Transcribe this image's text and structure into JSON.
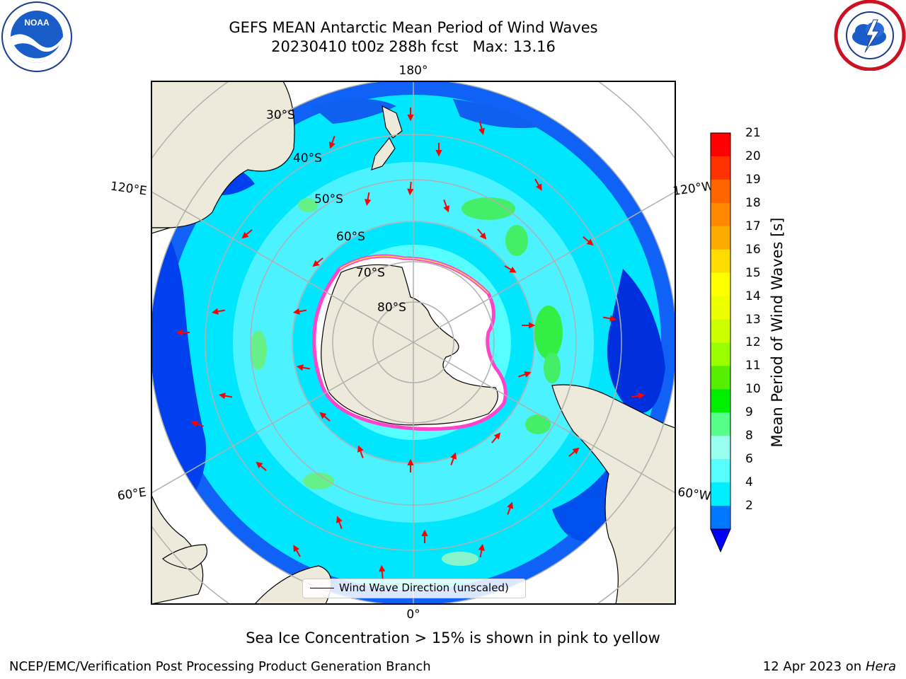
{
  "title": {
    "line1": "GEFS MEAN Antarctic Mean Period of Wind Waves",
    "line2": "20230410 t00z 288h fcst   Max: 13.16"
  },
  "map": {
    "projection": "South polar stereographic",
    "longitude_labels": {
      "top": "180°",
      "bottom": "0°",
      "upper_left": "120°E",
      "upper_right": "120°W",
      "lower_left": "60°E",
      "lower_right": "60°W"
    },
    "latitude_labels": [
      "30°S",
      "40°S",
      "50°S",
      "60°S",
      "70°S",
      "80°S"
    ],
    "legend": "Wind Wave Direction (unscaled)",
    "colors": {
      "ocean_dark": "#0050ff",
      "ocean_mid": "#00ddff",
      "ocean_light": "#50f0ff",
      "wave_green": "#44ee66",
      "land": "#eeeadb",
      "ice_white": "#ffffff",
      "ice_edge": "#ff44cc",
      "arrow": "#ff0000",
      "grid": "#b0b0b0"
    }
  },
  "colorbar": {
    "label": "Mean Period of Wind Waves [s]",
    "ticks": [
      "21",
      "20",
      "19",
      "18",
      "17",
      "16",
      "15",
      "14",
      "13",
      "12",
      "11",
      "10",
      "9",
      "8",
      "6",
      "4",
      "2"
    ],
    "colors": [
      "#ff0000",
      "#ff3300",
      "#ff6600",
      "#ff8800",
      "#ffaa00",
      "#ffdd00",
      "#ffff00",
      "#eeff00",
      "#ccff00",
      "#99ff00",
      "#55ee00",
      "#00ee00",
      "#55ff88",
      "#99ffee",
      "#55ffff",
      "#00eeff",
      "#0077ff"
    ],
    "extend_color": "#0000ff"
  },
  "caption": "Sea Ice Concentration > 15% is shown in pink to yellow",
  "footer": {
    "left": "NCEP/EMC/Verification Post Processing Product Generation Branch",
    "right_date": "12 Apr 2023 on ",
    "right_host": "Hera"
  }
}
